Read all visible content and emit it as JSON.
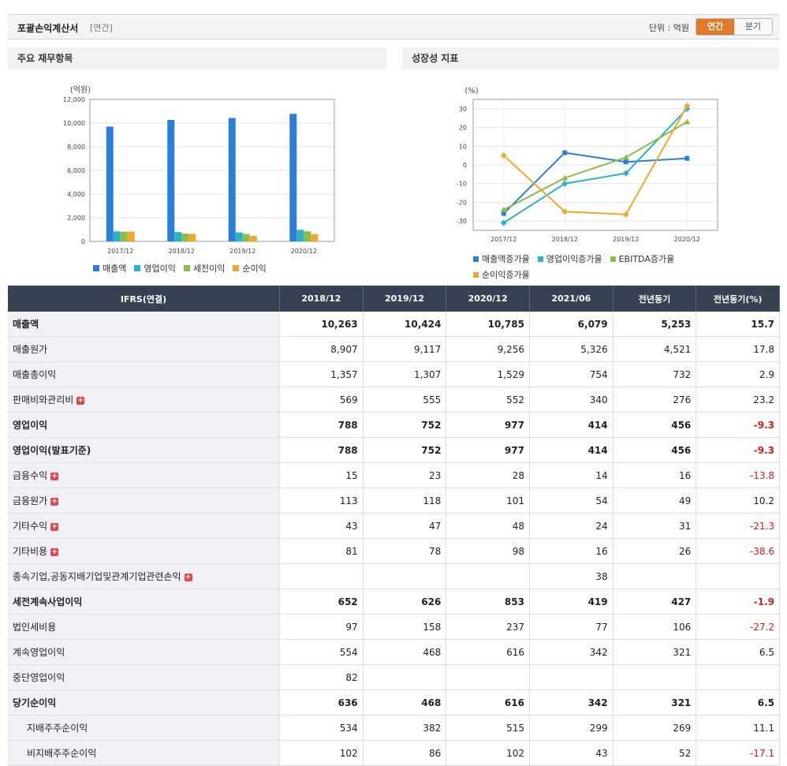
{
  "header": {
    "title": "포괄손익계산서",
    "subtitle": "[연간]",
    "unit": "단위 : 억원",
    "tabs": [
      {
        "label": "연간",
        "active": true
      },
      {
        "label": "분기",
        "active": false
      }
    ]
  },
  "left_panel": {
    "title": "주요 재무항목"
  },
  "right_panel": {
    "title": "성장성 지표"
  },
  "colors": {
    "accent": "#e07a28",
    "header_bg": "#374152",
    "negative": "#d61818"
  },
  "chart_data": [
    {
      "type": "bar",
      "ylabel": "(억원)",
      "categories": [
        "2017/12",
        "2018/12",
        "2019/12",
        "2020/12"
      ],
      "ylim": [
        0,
        12000
      ],
      "yticks": [
        "0",
        "2,000",
        "4,000",
        "6,000",
        "8,000",
        "10,000",
        "12,000"
      ],
      "series": [
        {
          "name": "매출액",
          "color": "#2b7fd9",
          "values": [
            9700,
            10263,
            10424,
            10785
          ]
        },
        {
          "name": "영업이익",
          "color": "#2ab3c7",
          "values": [
            850,
            788,
            752,
            977
          ]
        },
        {
          "name": "세전이익",
          "color": "#8bbd47",
          "values": [
            820,
            652,
            626,
            853
          ]
        },
        {
          "name": "순이익",
          "color": "#f2a62b",
          "values": [
            830,
            636,
            468,
            616
          ]
        }
      ],
      "legend": "bottom"
    },
    {
      "type": "line",
      "ylabel": "(%)",
      "categories": [
        "2017/12",
        "2018/12",
        "2019/12",
        "2020/12"
      ],
      "ylim": [
        -35,
        35
      ],
      "yticks": [
        "-30",
        "-20",
        "-10",
        "0",
        "10",
        "20",
        "30"
      ],
      "series": [
        {
          "name": "매출액증가율",
          "color": "#2b7fd9",
          "marker": "square",
          "values": [
            -26,
            6.5,
            1.6,
            3.5
          ]
        },
        {
          "name": "영업이익증가율",
          "color": "#2ab3c7",
          "marker": "diamond",
          "values": [
            -31,
            -10,
            -4.5,
            30
          ]
        },
        {
          "name": "EBITDA증가율",
          "color": "#8bbd47",
          "marker": "triangle",
          "values": [
            -24,
            -7,
            4,
            23
          ]
        },
        {
          "name": "순이익증가율",
          "color": "#f2a62b",
          "marker": "diamond",
          "values": [
            5,
            -25,
            -26.5,
            31.5
          ]
        }
      ],
      "legend": "bottom"
    }
  ],
  "table": {
    "columns": [
      "IFRS(연결)",
      "2018/12",
      "2019/12",
      "2020/12",
      "2021/06",
      "전년동기",
      "전년동기(%)"
    ],
    "rows": [
      {
        "label": "매출액",
        "bold": true,
        "plus": false,
        "sub": false,
        "values": [
          "10,263",
          "10,424",
          "10,785",
          "6,079",
          "5,253",
          "15.7"
        ]
      },
      {
        "label": "매출원가",
        "bold": false,
        "plus": false,
        "sub": false,
        "values": [
          "8,907",
          "9,117",
          "9,256",
          "5,326",
          "4,521",
          "17.8"
        ]
      },
      {
        "label": "매출총이익",
        "bold": false,
        "plus": false,
        "sub": false,
        "values": [
          "1,357",
          "1,307",
          "1,529",
          "754",
          "732",
          "2.9"
        ]
      },
      {
        "label": "판매비와관리비",
        "bold": false,
        "plus": true,
        "sub": false,
        "values": [
          "569",
          "555",
          "552",
          "340",
          "276",
          "23.2"
        ]
      },
      {
        "label": "영업이익",
        "bold": true,
        "plus": false,
        "sub": false,
        "values": [
          "788",
          "752",
          "977",
          "414",
          "456",
          "-9.3"
        ]
      },
      {
        "label": "영업이익(발표기준)",
        "bold": true,
        "plus": false,
        "sub": false,
        "values": [
          "788",
          "752",
          "977",
          "414",
          "456",
          "-9.3"
        ]
      },
      {
        "label": "금융수익",
        "bold": false,
        "plus": true,
        "sub": false,
        "values": [
          "15",
          "23",
          "28",
          "14",
          "16",
          "-13.8"
        ]
      },
      {
        "label": "금융원가",
        "bold": false,
        "plus": true,
        "sub": false,
        "values": [
          "113",
          "118",
          "101",
          "54",
          "49",
          "10.2"
        ]
      },
      {
        "label": "기타수익",
        "bold": false,
        "plus": true,
        "sub": false,
        "values": [
          "43",
          "47",
          "48",
          "24",
          "31",
          "-21.3"
        ]
      },
      {
        "label": "기타비용",
        "bold": false,
        "plus": true,
        "sub": false,
        "values": [
          "81",
          "78",
          "98",
          "16",
          "26",
          "-38.6"
        ]
      },
      {
        "label": "종속기업,공동지배기업및관계기업관련손익",
        "bold": false,
        "plus": true,
        "sub": false,
        "values": [
          "",
          "",
          "",
          "38",
          "",
          ""
        ]
      },
      {
        "label": "세전계속사업이익",
        "bold": true,
        "plus": false,
        "sub": false,
        "values": [
          "652",
          "626",
          "853",
          "419",
          "427",
          "-1.9"
        ]
      },
      {
        "label": "법인세비용",
        "bold": false,
        "plus": false,
        "sub": false,
        "values": [
          "97",
          "158",
          "237",
          "77",
          "106",
          "-27.2"
        ]
      },
      {
        "label": "계속영업이익",
        "bold": false,
        "plus": false,
        "sub": false,
        "values": [
          "554",
          "468",
          "616",
          "342",
          "321",
          "6.5"
        ]
      },
      {
        "label": "중단영업이익",
        "bold": false,
        "plus": false,
        "sub": false,
        "values": [
          "82",
          "",
          "",
          "",
          "",
          ""
        ]
      },
      {
        "label": "당기순이익",
        "bold": true,
        "plus": false,
        "sub": false,
        "values": [
          "636",
          "468",
          "616",
          "342",
          "321",
          "6.5"
        ]
      },
      {
        "label": "지배주주순이익",
        "bold": false,
        "plus": false,
        "sub": true,
        "values": [
          "534",
          "382",
          "515",
          "299",
          "269",
          "11.1"
        ]
      },
      {
        "label": "비지배주주순이익",
        "bold": false,
        "plus": false,
        "sub": true,
        "values": [
          "102",
          "86",
          "102",
          "43",
          "52",
          "-17.1"
        ]
      }
    ]
  }
}
